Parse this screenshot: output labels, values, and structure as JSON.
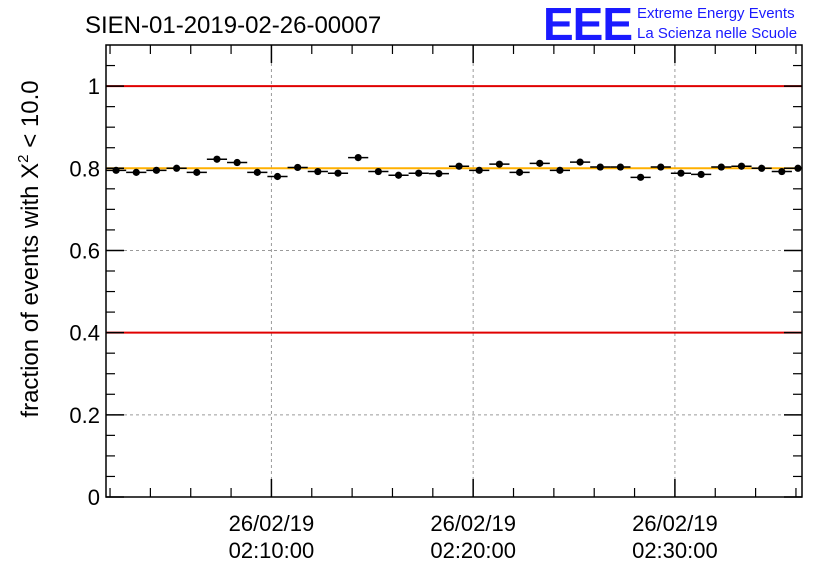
{
  "logo": {
    "mark": "EEE",
    "line1": "Extreme Energy Events",
    "line2": "La Scienza nelle Scuole",
    "color": "#1a1aff"
  },
  "chart_data": {
    "type": "scatter",
    "title": "SIEN-01-2019-02-26-00007",
    "ylabel_prefix": "fraction of events with ",
    "ylabel_symbol": "X",
    "ylabel_exponent": "2",
    "ylabel_suffix": " < 10.0",
    "xlabel": "",
    "ylim": [
      0,
      1.1
    ],
    "y_ticks": [
      {
        "value": 0,
        "label": "0"
      },
      {
        "value": 0.2,
        "label": "0.2"
      },
      {
        "value": 0.4,
        "label": "0.4"
      },
      {
        "value": 0.6,
        "label": "0.6"
      },
      {
        "value": 0.8,
        "label": "0.8"
      },
      {
        "value": 1,
        "label": "1"
      }
    ],
    "xlim_minutes": [
      1.8,
      36.3
    ],
    "x_ticks": [
      {
        "minute": 10,
        "date": "26/02/19",
        "time": "02:10:00"
      },
      {
        "minute": 20,
        "date": "26/02/19",
        "time": "02:20:00"
      },
      {
        "minute": 30,
        "date": "26/02/19",
        "time": "02:30:00"
      }
    ],
    "minor_tick_step_minutes": 2,
    "bin_width_minutes": 1,
    "grid": true,
    "reference_lines": [
      {
        "name": "upper-threshold",
        "value": 1.0,
        "color": "#e00000"
      },
      {
        "name": "lower-threshold",
        "value": 0.4,
        "color": "#e00000"
      },
      {
        "name": "mean-level",
        "value": 0.8,
        "color": "#ffb000"
      }
    ],
    "series": [
      {
        "name": "fraction",
        "color": "#000000",
        "points": [
          {
            "x": 2.3,
            "y": 0.795
          },
          {
            "x": 3.3,
            "y": 0.79
          },
          {
            "x": 4.3,
            "y": 0.795
          },
          {
            "x": 5.3,
            "y": 0.8
          },
          {
            "x": 6.3,
            "y": 0.79
          },
          {
            "x": 7.3,
            "y": 0.822
          },
          {
            "x": 8.3,
            "y": 0.814
          },
          {
            "x": 9.3,
            "y": 0.79
          },
          {
            "x": 10.3,
            "y": 0.78
          },
          {
            "x": 11.3,
            "y": 0.802
          },
          {
            "x": 12.3,
            "y": 0.792
          },
          {
            "x": 13.3,
            "y": 0.788
          },
          {
            "x": 14.3,
            "y": 0.826
          },
          {
            "x": 15.3,
            "y": 0.792
          },
          {
            "x": 16.3,
            "y": 0.783
          },
          {
            "x": 17.3,
            "y": 0.788
          },
          {
            "x": 18.3,
            "y": 0.787
          },
          {
            "x": 19.3,
            "y": 0.805
          },
          {
            "x": 20.3,
            "y": 0.795
          },
          {
            "x": 21.3,
            "y": 0.81
          },
          {
            "x": 22.3,
            "y": 0.79
          },
          {
            "x": 23.3,
            "y": 0.812
          },
          {
            "x": 24.3,
            "y": 0.795
          },
          {
            "x": 25.3,
            "y": 0.815
          },
          {
            "x": 26.3,
            "y": 0.803
          },
          {
            "x": 27.3,
            "y": 0.803
          },
          {
            "x": 28.3,
            "y": 0.778
          },
          {
            "x": 29.3,
            "y": 0.803
          },
          {
            "x": 30.3,
            "y": 0.788
          },
          {
            "x": 31.3,
            "y": 0.785
          },
          {
            "x": 32.3,
            "y": 0.803
          },
          {
            "x": 33.3,
            "y": 0.805
          },
          {
            "x": 34.3,
            "y": 0.8
          },
          {
            "x": 35.3,
            "y": 0.792
          },
          {
            "x": 36.1,
            "y": 0.8
          }
        ]
      }
    ]
  }
}
